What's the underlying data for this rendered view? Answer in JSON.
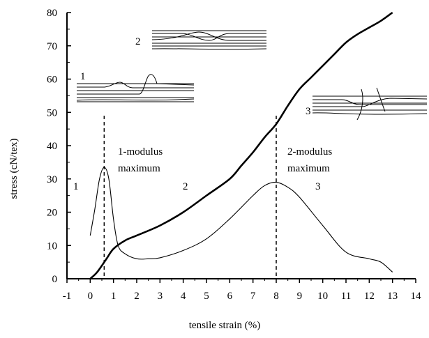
{
  "chart_data": {
    "type": "line",
    "xlabel": "tensile strain (%)",
    "ylabel": "stress (cN/tex)",
    "xlim": [
      -1,
      14
    ],
    "ylim": [
      0,
      80
    ],
    "x_ticks": [
      "-1",
      "0",
      "1",
      "2",
      "3",
      "4",
      "5",
      "6",
      "7",
      "8",
      "9",
      "10",
      "11",
      "12",
      "13",
      "14"
    ],
    "y_ticks": [
      "0",
      "10",
      "20",
      "30",
      "40",
      "50",
      "60",
      "70",
      "80"
    ],
    "grid": false,
    "series": [
      {
        "style": "thick",
        "points": [
          [
            0.0,
            0.0
          ],
          [
            0.3,
            2.0
          ],
          [
            0.7,
            6.0
          ],
          [
            1.0,
            9.0
          ],
          [
            1.5,
            11.5
          ],
          [
            2.0,
            13.0
          ],
          [
            3.0,
            16.0
          ],
          [
            4.0,
            20.0
          ],
          [
            5.0,
            25.0
          ],
          [
            6.0,
            30.0
          ],
          [
            6.5,
            34.0
          ],
          [
            7.0,
            38.0
          ],
          [
            7.5,
            42.5
          ],
          [
            8.0,
            46.5
          ],
          [
            8.5,
            52.0
          ],
          [
            9.0,
            57.0
          ],
          [
            9.5,
            60.5
          ],
          [
            10.0,
            64.0
          ],
          [
            10.5,
            67.5
          ],
          [
            11.0,
            71.0
          ],
          [
            11.5,
            73.5
          ],
          [
            12.0,
            75.5
          ],
          [
            12.5,
            77.5
          ],
          [
            13.0,
            80.0
          ]
        ]
      },
      {
        "style": "thin",
        "points": [
          [
            0.0,
            13.0
          ],
          [
            0.2,
            21.0
          ],
          [
            0.4,
            30.0
          ],
          [
            0.6,
            33.5
          ],
          [
            0.8,
            30.0
          ],
          [
            1.0,
            18.0
          ],
          [
            1.2,
            10.0
          ],
          [
            1.5,
            7.5
          ],
          [
            2.0,
            6.0
          ],
          [
            2.5,
            6.0
          ],
          [
            3.0,
            6.3
          ],
          [
            4.0,
            8.5
          ],
          [
            5.0,
            12.0
          ],
          [
            6.0,
            18.0
          ],
          [
            7.0,
            25.0
          ],
          [
            7.5,
            28.0
          ],
          [
            8.0,
            29.0
          ],
          [
            8.5,
            27.5
          ],
          [
            9.0,
            24.5
          ],
          [
            10.0,
            16.0
          ],
          [
            11.0,
            8.0
          ],
          [
            12.0,
            6.0
          ],
          [
            12.5,
            5.0
          ],
          [
            13.0,
            2.0
          ]
        ]
      }
    ],
    "vlines": [
      0.6,
      8.0
    ],
    "annotations": {
      "region_1": "1",
      "region_2": "2",
      "region_3": "3",
      "max1_line1": "1-modulus",
      "max1_line2": "maximum",
      "max2_line1": "2-modulus",
      "max2_line2": "maximum",
      "sketch_1": "1",
      "sketch_2": "2",
      "sketch_3": "3"
    }
  }
}
